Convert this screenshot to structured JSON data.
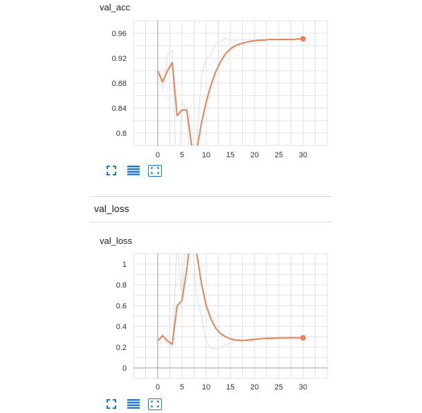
{
  "charts": [
    {
      "title": "val_acc",
      "buttons": [
        "fullscreen-icon",
        "list-icon",
        "fit-domain-icon"
      ]
    },
    {
      "title": "val_loss",
      "buttons": [
        "fullscreen-icon",
        "list-icon",
        "fit-domain-icon"
      ]
    }
  ],
  "section": {
    "title": "val_loss"
  },
  "colors": {
    "smoothed": "#f07f53",
    "raw": "#e8e8e8",
    "grid": "#e0e0e0",
    "axis": "#999999",
    "icon": "#1976d2"
  },
  "chart_data": [
    {
      "type": "line",
      "title": "val_acc",
      "x": [
        0,
        1,
        2,
        3,
        4,
        5,
        6,
        7,
        8,
        9,
        10,
        11,
        12,
        13,
        14,
        15,
        16,
        17,
        18,
        19,
        20,
        21,
        22,
        23,
        24,
        25,
        26,
        27,
        28,
        29,
        30
      ],
      "xticks": [
        0,
        5,
        10,
        15,
        20,
        25,
        30
      ],
      "yticks": [
        "0.8",
        "0.84",
        "0.88",
        "0.92",
        "0.96"
      ],
      "ylim": [
        0.78,
        0.98
      ],
      "xlim": [
        -5,
        35
      ],
      "series": [
        {
          "role": "smoothed",
          "values": [
            0.9,
            0.882,
            0.9,
            0.913,
            0.828,
            0.837,
            0.837,
            0.78,
            0.77,
            0.815,
            0.85,
            0.877,
            0.899,
            0.915,
            0.927,
            0.935,
            0.94,
            0.943,
            0.945,
            0.947,
            0.948,
            0.949,
            0.949,
            0.95,
            0.95,
            0.95,
            0.95,
            0.95,
            0.95,
            0.951,
            0.951
          ]
        },
        {
          "role": "raw",
          "values": [
            0.9,
            0.87,
            0.925,
            0.933,
            0.7,
            0.85,
            0.835,
            0.7,
            0.78,
            0.89,
            0.92,
            0.925,
            0.943,
            0.947,
            0.952,
            0.95,
            0.948,
            0.95,
            0.95,
            0.95,
            0.95,
            0.95,
            0.95,
            0.95,
            0.95,
            0.95,
            0.95,
            0.95,
            0.95,
            0.951,
            0.951
          ]
        }
      ]
    },
    {
      "type": "line",
      "title": "val_loss",
      "x": [
        0,
        1,
        2,
        3,
        4,
        5,
        6,
        7,
        8,
        9,
        10,
        11,
        12,
        13,
        14,
        15,
        16,
        17,
        18,
        19,
        20,
        21,
        22,
        23,
        24,
        25,
        26,
        27,
        28,
        29,
        30
      ],
      "xticks": [
        0,
        5,
        10,
        15,
        20,
        25,
        30
      ],
      "yticks": [
        "0",
        "0.2",
        "0.4",
        "0.6",
        "0.8",
        "1"
      ],
      "ylim": [
        -0.1,
        1.1
      ],
      "xlim": [
        -5,
        35
      ],
      "series": [
        {
          "role": "smoothed",
          "values": [
            0.26,
            0.31,
            0.26,
            0.23,
            0.6,
            0.65,
            0.95,
            1.35,
            1.12,
            0.82,
            0.6,
            0.47,
            0.38,
            0.33,
            0.3,
            0.28,
            0.27,
            0.265,
            0.265,
            0.27,
            0.275,
            0.28,
            0.283,
            0.285,
            0.287,
            0.288,
            0.289,
            0.29,
            0.29,
            0.29,
            0.29
          ]
        },
        {
          "role": "raw",
          "values": [
            0.26,
            0.33,
            0.23,
            0.2,
            1.2,
            0.68,
            1.35,
            1.35,
            0.7,
            0.5,
            0.25,
            0.19,
            0.18,
            0.2,
            0.22,
            0.24,
            0.26,
            0.27,
            0.27,
            0.28,
            0.28,
            0.28,
            0.29,
            0.29,
            0.29,
            0.29,
            0.29,
            0.29,
            0.29,
            0.29,
            0.29
          ]
        }
      ]
    }
  ]
}
